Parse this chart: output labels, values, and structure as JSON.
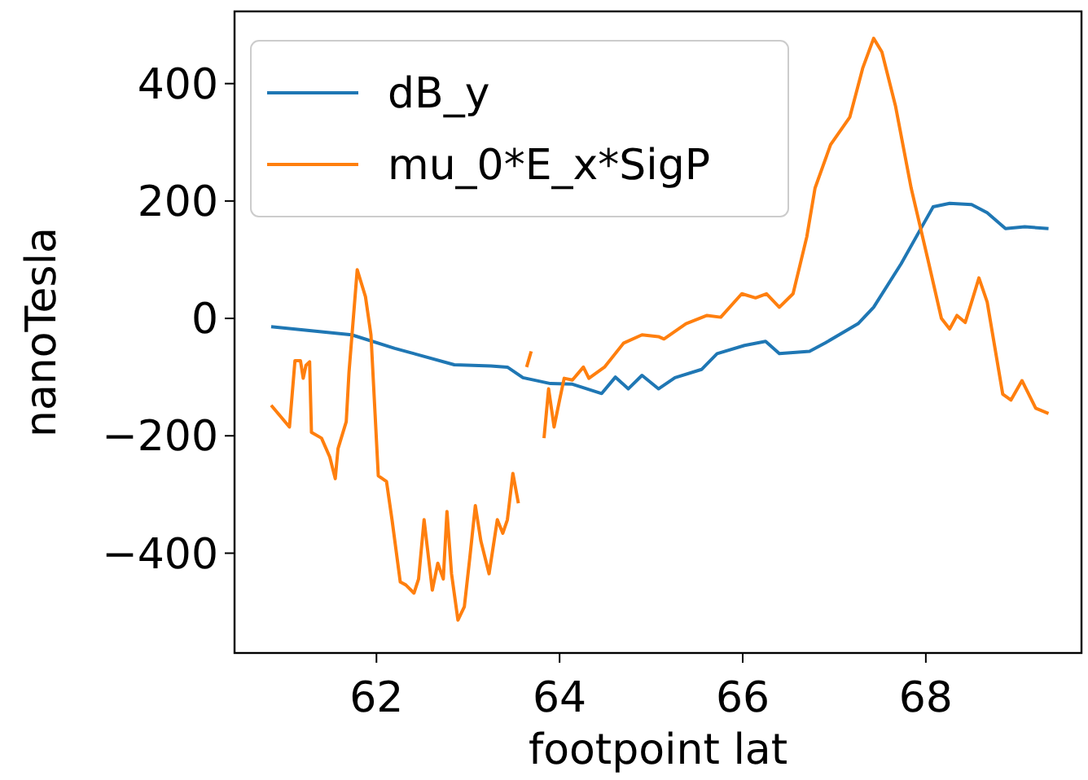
{
  "chart_data": {
    "type": "line",
    "xlabel": "footpoint lat",
    "ylabel": "nanoTesla",
    "xlim": [
      60.45,
      69.7
    ],
    "ylim": [
      -570,
      523
    ],
    "xticks": [
      62,
      64,
      66,
      68
    ],
    "yticks": [
      {
        "value": -400,
        "label": "−400"
      },
      {
        "value": -200,
        "label": "−200"
      },
      0,
      200,
      400
    ],
    "grid": false,
    "legend": "top left",
    "series": [
      {
        "name": "dB_y",
        "color": "#1f77b4",
        "x": [
          60.85,
          61.73,
          62.2,
          62.85,
          63.25,
          63.43,
          63.6,
          63.9,
          64.14,
          64.46,
          64.61,
          64.75,
          64.9,
          65.08,
          65.26,
          65.55,
          65.72,
          66.02,
          66.25,
          66.4,
          66.73,
          66.9,
          67.26,
          67.43,
          67.73,
          67.96,
          68.08,
          68.26,
          68.5,
          68.67,
          68.87,
          69.08,
          69.34
        ],
        "values": [
          -14,
          -28,
          -51,
          -79,
          -81,
          -83,
          -101,
          -111,
          -112,
          -128,
          -100,
          -120,
          -97,
          -120,
          -101,
          -87,
          -60,
          -46,
          -39,
          -60,
          -56,
          -42,
          -9,
          19,
          93,
          157,
          190,
          196,
          194,
          180,
          153,
          156,
          153
        ]
      },
      {
        "name": "mu_0*E_x*SigP",
        "color": "#ff7f0e",
        "x": [
          60.85,
          61.05,
          61.11,
          61.17,
          61.2,
          61.23,
          61.27,
          61.29,
          61.4,
          61.49,
          61.55,
          61.58,
          61.67,
          61.7,
          61.79,
          61.88,
          61.94,
          62.02,
          62.11,
          62.17,
          62.26,
          62.32,
          62.41,
          62.46,
          62.52,
          62.61,
          62.67,
          62.73,
          62.77,
          62.82,
          62.89,
          62.96,
          63.02,
          63.08,
          63.14,
          63.23,
          63.32,
          63.38,
          63.43,
          63.49,
          63.55,
          63.6,
          63.64,
          63.69,
          63.76,
          63.83,
          63.88,
          63.94,
          64.0,
          64.05,
          64.14,
          64.26,
          64.32,
          64.49,
          64.7,
          64.9,
          65.08,
          65.14,
          65.38,
          65.61,
          65.76,
          65.99,
          66.14,
          66.26,
          66.4,
          66.55,
          66.7,
          66.79,
          66.96,
          67.17,
          67.31,
          67.43,
          67.52,
          67.67,
          67.84,
          68.02,
          68.17,
          68.26,
          68.34,
          68.43,
          68.5,
          68.58,
          68.67,
          68.84,
          68.93,
          69.05,
          69.2,
          69.34
        ],
        "values": [
          -148,
          -185,
          -72,
          -72,
          -102,
          -80,
          -74,
          -194,
          -204,
          -236,
          -273,
          -222,
          -176,
          -92,
          83,
          37,
          -28,
          -268,
          -278,
          -343,
          -449,
          -454,
          -468,
          -444,
          -343,
          -463,
          -417,
          -444,
          -329,
          -435,
          -514,
          -491,
          -407,
          -319,
          -379,
          -435,
          -343,
          -366,
          -343,
          -264,
          -315,
          null,
          -83,
          -56,
          null,
          -204,
          -120,
          -185,
          -139,
          -102,
          -105,
          -83,
          -102,
          -83,
          -42,
          -28,
          -31,
          -35,
          -9,
          5,
          2,
          42,
          35,
          42,
          19,
          42,
          139,
          222,
          296,
          343,
          426,
          477,
          454,
          361,
          222,
          102,
          0,
          -18,
          5,
          -7,
          28,
          69,
          28,
          -129,
          -139,
          -106,
          -153,
          -162
        ]
      }
    ]
  }
}
